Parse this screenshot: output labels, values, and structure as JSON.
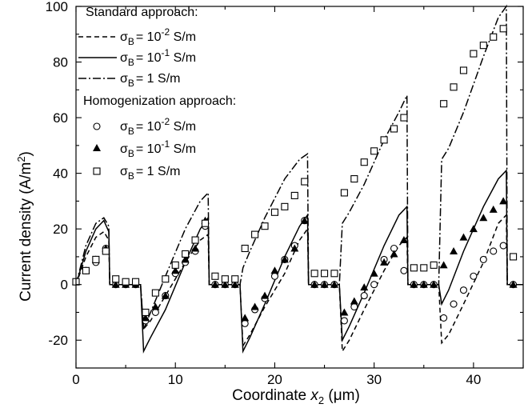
{
  "chart_data": {
    "type": "line",
    "xlabel_main": "Coordinate ",
    "xlabel_var": "x",
    "xlabel_sub": "2",
    "xlabel_unit": " (μm)",
    "ylabel_main": "Current density (A/m",
    "ylabel_sup": "2",
    "ylabel_end": ")",
    "xlim": [
      0,
      45
    ],
    "ylim": [
      -30,
      100
    ],
    "xticks": [
      "0",
      "10",
      "20",
      "30",
      "40"
    ],
    "yticks": [
      "-20",
      "0",
      "20",
      "40",
      "60",
      "80",
      "100"
    ],
    "legend": {
      "placement": "top-left",
      "group1_title": "Standard approach:",
      "group2_title": "Homogenization approach:",
      "sigma_sub": "B",
      "entries": [
        {
          "base": "= 10",
          "exp": "-2",
          "unit": " S/m"
        },
        {
          "base": "= 10",
          "exp": "-1",
          "unit": " S/m"
        },
        {
          "base": "= 1",
          "exp": "",
          "unit": " S/m"
        },
        {
          "base": "= 10",
          "exp": "-2",
          "unit": " S/m"
        },
        {
          "base": "= 10",
          "exp": "-1",
          "unit": " S/m"
        },
        {
          "base": "= 1",
          "exp": "",
          "unit": " S/m"
        }
      ]
    },
    "series": [
      {
        "group": "standard",
        "style": "dashed",
        "x": [
          0,
          1,
          2,
          2.8,
          3.3,
          3.4,
          6.5,
          6.8,
          7.5,
          9,
          11,
          12.5,
          13.3,
          13.4,
          16.5,
          16.8,
          17.5,
          19,
          21,
          22.5,
          23.3,
          23.4,
          26.5,
          26.8,
          27.5,
          29,
          31,
          32.5,
          33.3,
          33.4,
          36.5,
          36.8,
          37.5,
          39,
          41,
          42.5,
          43.3,
          43.4,
          45
        ],
        "y": [
          0,
          10,
          17,
          19,
          16,
          0,
          0,
          -16,
          -13,
          -4,
          8,
          16,
          18,
          0,
          0,
          -22,
          -18,
          -8,
          4,
          16,
          20,
          0,
          0,
          -24,
          -20,
          -9,
          5,
          14,
          17,
          0,
          0,
          -21,
          -18,
          -7,
          8,
          22,
          25,
          0,
          0
        ]
      },
      {
        "group": "standard",
        "style": "solid",
        "x": [
          0,
          1,
          2,
          2.8,
          3.3,
          3.4,
          6.5,
          6.8,
          7.5,
          9,
          11,
          12.5,
          13.3,
          13.4,
          16.5,
          16.8,
          17.5,
          19,
          21,
          22.5,
          23.3,
          23.4,
          26.5,
          26.8,
          27.5,
          29,
          31,
          32.5,
          33.3,
          33.4,
          36.5,
          36.8,
          37.5,
          39,
          41,
          42.5,
          43.3,
          43.4,
          45
        ],
        "y": [
          0,
          12,
          20,
          23,
          19,
          0,
          0,
          -24,
          -19,
          -9,
          8,
          20,
          24,
          0,
          0,
          -24,
          -19,
          -7,
          10,
          21,
          25,
          0,
          0,
          -20,
          -15,
          -3,
          14,
          25,
          28,
          0,
          0,
          -7,
          -2,
          12,
          28,
          38,
          41,
          0,
          0
        ]
      },
      {
        "group": "standard",
        "style": "dashdot",
        "x": [
          0,
          1,
          2,
          2.8,
          3.3,
          3.4,
          6.5,
          6.8,
          7.5,
          9,
          11,
          12.5,
          13.3,
          13.4,
          16.5,
          16.8,
          17.5,
          19,
          21,
          22.5,
          23.3,
          23.4,
          26.5,
          26.8,
          27.5,
          29,
          31,
          32.5,
          33.3,
          33.4,
          36.5,
          36.8,
          37.5,
          39,
          41,
          42.5,
          43.3,
          43.4,
          45
        ],
        "y": [
          0,
          14,
          22,
          24,
          21,
          0,
          0,
          -16,
          -10,
          3,
          20,
          30,
          33,
          0,
          0,
          6,
          12,
          24,
          38,
          45,
          47,
          0,
          0,
          22,
          26,
          36,
          52,
          62,
          68,
          0,
          0,
          45,
          49,
          62,
          82,
          96,
          100,
          0,
          0
        ]
      },
      {
        "group": "homogenization",
        "marker": "open-circle",
        "x": [
          0,
          1,
          2,
          3,
          4,
          5,
          6,
          7,
          8,
          9,
          10,
          11,
          12,
          13,
          14,
          15,
          16,
          17,
          18,
          19,
          20,
          21,
          22,
          23,
          24,
          25,
          26,
          27,
          28,
          29,
          30,
          31,
          32,
          33,
          34,
          35,
          36,
          37,
          38,
          39,
          40,
          41,
          42,
          43,
          44
        ],
        "y": [
          1,
          5,
          8,
          13,
          0,
          0,
          0,
          -13,
          -10,
          -4,
          4,
          8,
          12,
          21,
          0,
          0,
          0,
          -14,
          -9,
          -5,
          3,
          9,
          14,
          23,
          0,
          0,
          0,
          -13,
          -8,
          -4,
          0,
          9,
          13,
          5,
          0,
          0,
          0,
          -12,
          -7,
          -2,
          3,
          9,
          12,
          14,
          0
        ]
      },
      {
        "group": "homogenization",
        "marker": "filled-triangle",
        "x": [
          0,
          1,
          2,
          3,
          4,
          5,
          6,
          7,
          8,
          9,
          10,
          11,
          12,
          13,
          14,
          15,
          16,
          17,
          18,
          19,
          20,
          21,
          22,
          23,
          24,
          25,
          26,
          27,
          28,
          29,
          30,
          31,
          32,
          33,
          34,
          35,
          36,
          37,
          38,
          39,
          40,
          41,
          42,
          43,
          44
        ],
        "y": [
          1,
          5,
          9,
          13,
          0,
          0,
          0,
          -12,
          -8,
          -4,
          5,
          9,
          13,
          23,
          0,
          0,
          0,
          -12,
          -8,
          -4,
          5,
          9,
          13,
          23,
          0,
          0,
          0,
          -10,
          -6,
          -1,
          4,
          8,
          11,
          16,
          0,
          0,
          0,
          7,
          12,
          17,
          20,
          24,
          27,
          30,
          0
        ]
      },
      {
        "group": "homogenization",
        "marker": "open-square",
        "x": [
          0,
          1,
          2,
          3,
          4,
          5,
          6,
          7,
          8,
          9,
          10,
          11,
          12,
          13,
          14,
          15,
          16,
          17,
          18,
          19,
          20,
          21,
          22,
          23,
          24,
          25,
          26,
          27,
          28,
          29,
          30,
          31,
          32,
          33,
          34,
          35,
          36,
          37,
          38,
          39,
          40,
          41,
          42,
          43,
          44
        ],
        "y": [
          1,
          5,
          9,
          12,
          2,
          1,
          1,
          -10,
          -3,
          2,
          7,
          11,
          16,
          22,
          3,
          2,
          2,
          13,
          18,
          21,
          26,
          28,
          32,
          37,
          4,
          4,
          4,
          33,
          38,
          44,
          48,
          52,
          56,
          60,
          6,
          6,
          7,
          65,
          71,
          77,
          83,
          86,
          89,
          92,
          10
        ]
      }
    ]
  }
}
